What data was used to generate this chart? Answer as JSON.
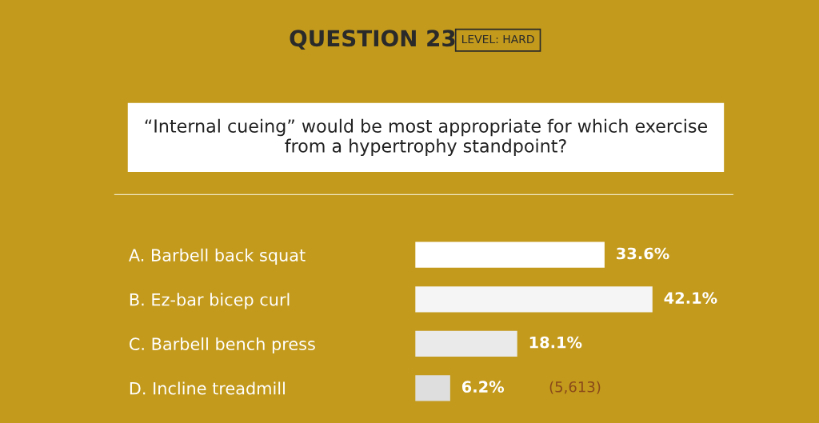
{
  "chart_data": {
    "type": "bar",
    "orientation": "horizontal",
    "title": "“Internal cueing” would be most appropriate for which exercise\nfrom a hypertrophy standpoint?",
    "categories": [
      "A. Barbell back squat",
      "B. Ez-bar bicep curl",
      "C. Barbell bench press",
      "D. Incline treadmill"
    ],
    "values": [
      33.6,
      42.1,
      18.1,
      6.2
    ],
    "colors": [
      "#ffffff",
      "#f5f5f5",
      "#eaeaea",
      "#dedede"
    ],
    "value_labels": [
      "33.6%",
      "42.1%",
      "18.1%",
      "6.2%"
    ],
    "annotations": [
      "QUESTION 23",
      "LEVEL: HARD",
      "(5,613)"
    ],
    "grid": false,
    "legend": false
  }
}
